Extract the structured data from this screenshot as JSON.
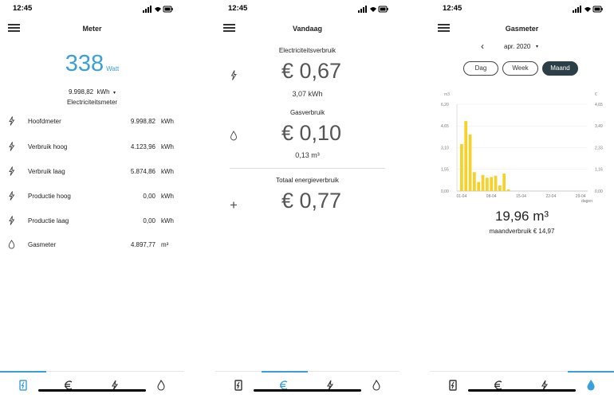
{
  "status_time": "12:45",
  "colors": {
    "accent": "#3aa0d9",
    "bar": "#f5d12a",
    "pill_active": "#2b3f46"
  },
  "screen1": {
    "title": "Meter",
    "current_value": "338",
    "current_unit": "Watt",
    "meter_value": "9.998,82",
    "meter_unit": "kWh",
    "meter_caret": "▾",
    "meter_name": "Electriciteitsmeter",
    "rows": [
      {
        "label": "Hoofdmeter",
        "value": "9.998,82",
        "unit": "kWh",
        "icon": "bolt-icon"
      },
      {
        "label": "Verbruik hoog",
        "value": "4.123,96",
        "unit": "kWh",
        "icon": "bolt-icon"
      },
      {
        "label": "Verbruik laag",
        "value": "5.874,86",
        "unit": "kWh",
        "icon": "bolt-icon"
      },
      {
        "label": "Productie hoog",
        "value": "0,00",
        "unit": "kWh",
        "icon": "bolt-icon"
      },
      {
        "label": "Productie laag",
        "value": "0,00",
        "unit": "kWh",
        "icon": "bolt-icon"
      },
      {
        "label": "Gasmeter",
        "value": "4.897,77",
        "unit": "m³",
        "icon": "flame-icon"
      }
    ]
  },
  "screen2": {
    "title": "Vandaag",
    "electricity_title": "Electriciteitsverbruik",
    "electricity_cost": "€ 0,67",
    "electricity_amount": "3,07 kWh",
    "gas_title": "Gasverbruik",
    "gas_cost": "€ 0,10",
    "gas_amount": "0,13 m³",
    "total_title": "Totaal energieverbruik",
    "total_cost": "€ 0,77"
  },
  "screen3": {
    "title": "Gasmeter",
    "month": "apr. 2020",
    "month_caret": "▾",
    "prev_icon": "‹",
    "periods": [
      "Dag",
      "Week",
      "Maand"
    ],
    "active_period": "Maand",
    "total": "19,96 m³",
    "month_cost": "maandverbruik € 14,97"
  },
  "chart_data": {
    "type": "bar",
    "left_unit": "m3",
    "right_unit": "€",
    "y_left_ticks": [
      "6,20",
      "4,65",
      "3,10",
      "1,55",
      "0,00"
    ],
    "y_right_ticks": [
      "4,65",
      "3,49",
      "2,33",
      "1,16",
      "0,00"
    ],
    "x_ticks": [
      "01-04",
      "08-04",
      "15-04",
      "22-04",
      "29-04"
    ],
    "x_unit": "dagen",
    "ylim": [
      0,
      6.2
    ],
    "x": [
      "01-04",
      "02-04",
      "03-04",
      "04-04",
      "05-04",
      "06-04",
      "07-04",
      "08-04",
      "09-04",
      "10-04",
      "11-04",
      "12-04",
      "13-04",
      "14-04",
      "15-04",
      "16-04",
      "17-04",
      "18-04",
      "19-04",
      "20-04",
      "21-04",
      "22-04",
      "23-04",
      "24-04",
      "25-04",
      "26-04",
      "27-04",
      "28-04",
      "29-04",
      "30-04"
    ],
    "values": [
      3.35,
      5.0,
      4.05,
      1.35,
      0.65,
      1.15,
      0.95,
      1.0,
      1.1,
      0.4,
      1.25,
      0.12,
      0,
      0,
      0,
      0,
      0,
      0,
      0,
      0,
      0,
      0,
      0,
      0,
      0,
      0,
      0,
      0,
      0,
      0
    ]
  }
}
